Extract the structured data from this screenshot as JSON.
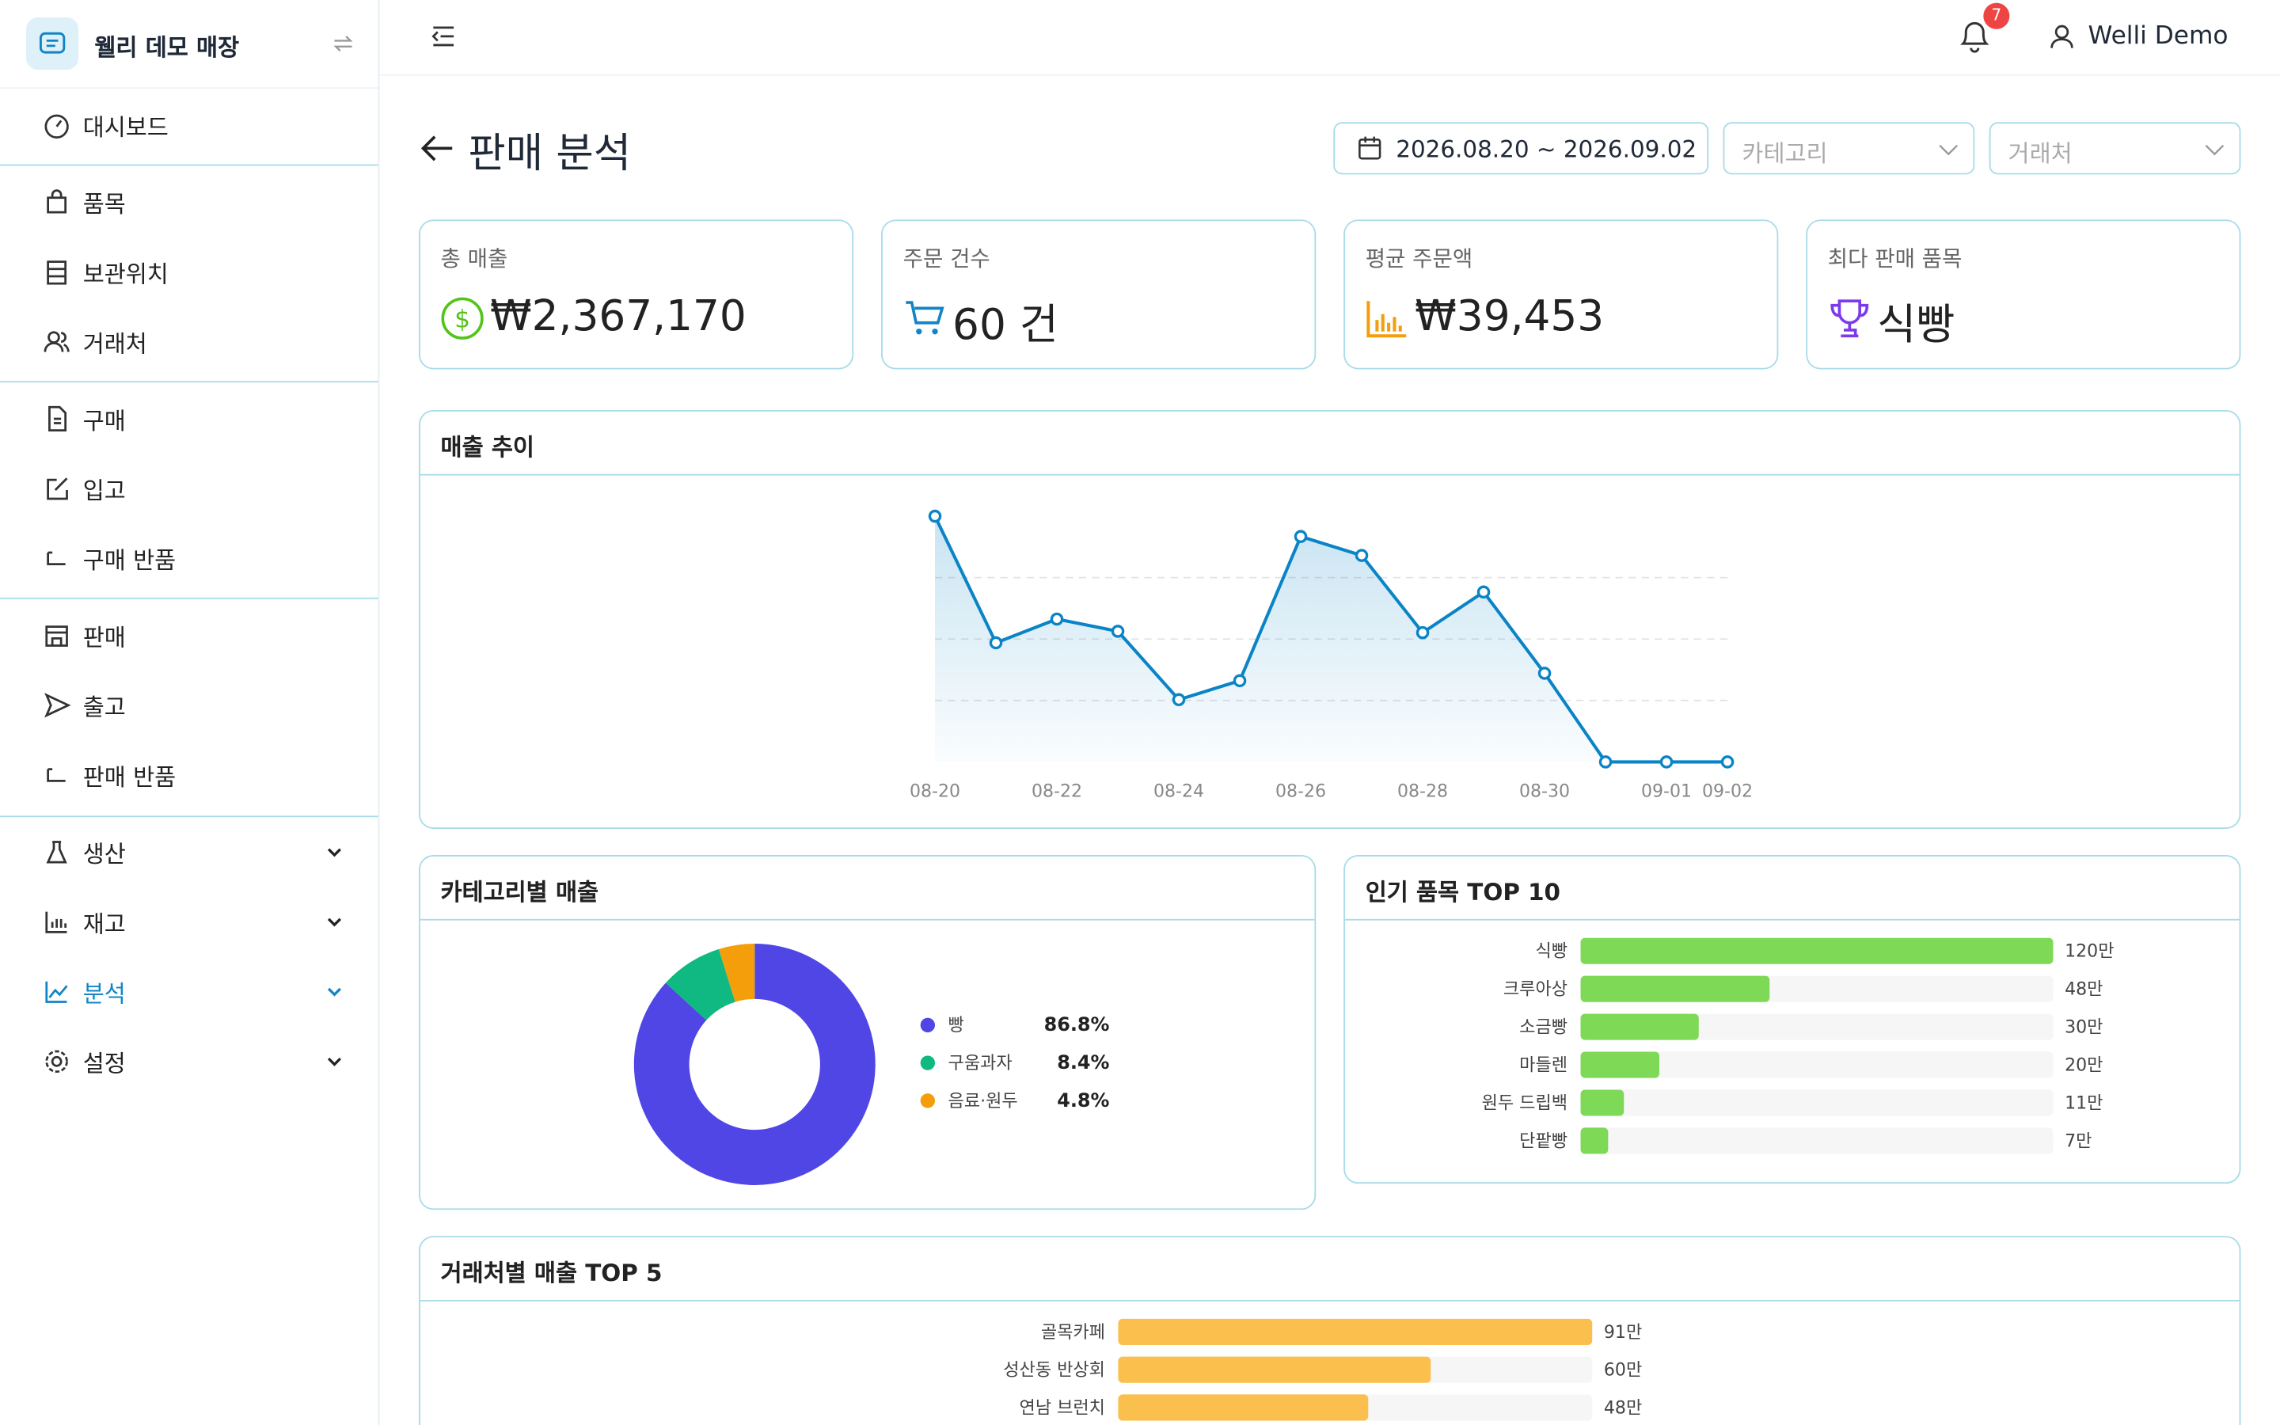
{
  "store_name": "웰리 데모 매장",
  "nav": [
    "대시보드",
    "품목",
    "보관위치",
    "거래처",
    "구매",
    "입고",
    "구매 반품",
    "판매",
    "출고",
    "판매 반품",
    "생산",
    "재고",
    "분석",
    "설정"
  ],
  "header": {
    "notification_count": "7",
    "user": "Welli Demo"
  },
  "page": {
    "title": "판매 분석",
    "date_range": "2026.08.20 ~ 2026.09.02",
    "filters": [
      "카테고리",
      "거래처"
    ]
  },
  "kpis": [
    {
      "label": "총 매출",
      "value": "₩2,367,170"
    },
    {
      "label": "주문 건수",
      "value": "60 건"
    },
    {
      "label": "평균 주문액",
      "value": "₩39,453"
    },
    {
      "label": "최다 판매 품목",
      "value": "식빵"
    }
  ],
  "chart_data": [
    {
      "type": "line",
      "title": "매출 추이",
      "categories": [
        "08-20",
        null,
        "08-22",
        null,
        "08-24",
        null,
        "08-26",
        null,
        "08-28",
        null,
        "08-30",
        null,
        "09-01",
        "09-02"
      ],
      "values": [
        363000,
        176000,
        211000,
        193000,
        92000,
        120000,
        333000,
        305000,
        191000,
        251000,
        131000,
        0,
        0,
        0
      ],
      "color": "#0a84c6",
      "ylim": [
        0,
        363000
      ],
      "grid": true
    },
    {
      "type": "donut",
      "title": "카테고리별 매출",
      "categories": [
        "빵",
        "구움과자",
        "음료·원두"
      ],
      "values": [
        86.8,
        8.4,
        4.8
      ],
      "value_labels": [
        "86.8%",
        "8.4%",
        "4.8%"
      ],
      "colors": [
        "#4f46e5",
        "#10b981",
        "#f59e0b"
      ]
    },
    {
      "type": "bar",
      "orientation": "horizontal",
      "title": "인기 품목 TOP 10",
      "categories": [
        "식빵",
        "크루아상",
        "소금빵",
        "마들렌",
        "원두 드립백",
        "단팥빵"
      ],
      "values": [
        120,
        48,
        30,
        20,
        11,
        7
      ],
      "value_labels": [
        "120만",
        "48만",
        "30만",
        "20만",
        "11만",
        "7만"
      ],
      "color": "#7ed957",
      "xlim": [
        0,
        120
      ]
    },
    {
      "type": "bar",
      "orientation": "horizontal",
      "title": "거래처별 매출 TOP 5",
      "categories": [
        "골목카페",
        "성산동 반상회",
        "연남 브런치"
      ],
      "values": [
        91,
        60,
        48
      ],
      "value_labels": [
        "91만",
        "60만",
        "48만"
      ],
      "color": "#fbbf4d",
      "xlim": [
        0,
        91
      ]
    }
  ]
}
